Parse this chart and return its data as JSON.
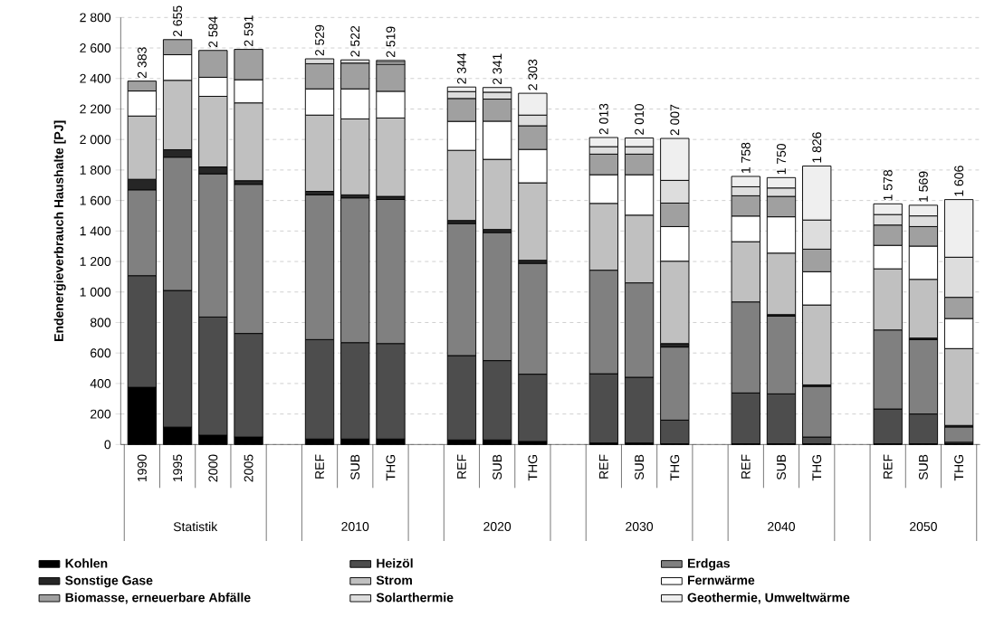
{
  "chart_data": {
    "type": "bar",
    "stacked": true,
    "ylabel": "Endenergieverbrauch Haushalte [PJ]",
    "categories": [
      "1990",
      "1995",
      "2000",
      "2005",
      null,
      "REF",
      "SUB",
      "THG",
      null,
      "REF",
      "SUB",
      "THG",
      null,
      "REF",
      "SUB",
      "THG",
      null,
      "REF",
      "SUB",
      "THG",
      null,
      "REF",
      "SUB",
      "THG"
    ],
    "series": [
      {
        "name": "Kohlen",
        "color": "#000000",
        "values": [
          375,
          114,
          61,
          49,
          null,
          36,
          36,
          36,
          null,
          30,
          30,
          20,
          null,
          10,
          10,
          5,
          null,
          5,
          5,
          5,
          null,
          5,
          5,
          5
        ]
      },
      {
        "name": "Heizöl",
        "color": "#4d4d4d",
        "values": [
          732,
          896,
          775,
          679,
          null,
          652,
          632,
          626,
          null,
          553,
          520,
          441,
          null,
          454,
          431,
          155,
          null,
          333,
          327,
          44,
          null,
          228,
          195,
          10
        ]
      },
      {
        "name": "Erdgas",
        "color": "#808080",
        "values": [
          563,
          874,
          939,
          978,
          null,
          949,
          949,
          945,
          null,
          866,
          840,
          727,
          null,
          679,
          619,
          479,
          null,
          597,
          510,
          332,
          null,
          518,
          488,
          100
        ]
      },
      {
        "name": "Sonstige Gase",
        "color": "#262626",
        "values": [
          69,
          49,
          45,
          24,
          null,
          23,
          20,
          20,
          null,
          20,
          20,
          20,
          null,
          null,
          null,
          23,
          null,
          null,
          10,
          10,
          null,
          null,
          10,
          10
        ]
      },
      {
        "name": "Strom",
        "color": "#c0c0c0",
        "values": [
          415,
          455,
          463,
          510,
          null,
          500,
          498,
          514,
          null,
          460,
          460,
          508,
          null,
          438,
          444,
          540,
          null,
          395,
          403,
          524,
          null,
          401,
          385,
          504
        ]
      },
      {
        "name": "Fernwärme",
        "color": "#ffffff",
        "values": [
          164,
          168,
          125,
          152,
          null,
          172,
          197,
          175,
          null,
          190,
          250,
          219,
          null,
          188,
          265,
          227,
          null,
          168,
          238,
          218,
          null,
          154,
          218,
          197
        ]
      },
      {
        "name": "Biomasse, erneuerbare Abfälle",
        "color": "#a0a0a0",
        "values": [
          65,
          99,
          176,
          199,
          null,
          165,
          169,
          178,
          null,
          150,
          145,
          155,
          null,
          135,
          135,
          154,
          null,
          133,
          134,
          148,
          null,
          133,
          128,
          139
        ]
      },
      {
        "name": "Solarthermie",
        "color": "#dddddd",
        "values": [
          null,
          null,
          null,
          null,
          null,
          32,
          21,
          15,
          null,
          45,
          45,
          70,
          null,
          49,
          49,
          149,
          null,
          59,
          55,
          191,
          null,
          69,
          70,
          263
        ]
      },
      {
        "name": "Geothermie, Umweltwärme",
        "color": "#efefef",
        "values": [
          null,
          null,
          null,
          null,
          null,
          null,
          null,
          10,
          null,
          30,
          31,
          143,
          null,
          60,
          57,
          275,
          null,
          68,
          68,
          354,
          null,
          70,
          70,
          378
        ]
      }
    ],
    "totals": [
      "2 383",
      "2 655",
      "2 584",
      "2 591",
      null,
      "2 529",
      "2 522",
      "2 519",
      null,
      "2 344",
      "2 341",
      "2 303",
      null,
      "2 013",
      "2 010",
      "2 007",
      null,
      "1 758",
      "1 750",
      "1 826",
      null,
      "1 578",
      "1 569",
      "1 606"
    ],
    "annotations": [
      "Statistik",
      "2010",
      "2020",
      "2030",
      "2040",
      "2050"
    ],
    "ylim": [
      0,
      2800
    ],
    "yticks": [
      {
        "value": 0,
        "label": "0"
      },
      {
        "value": 200,
        "label": "200"
      },
      {
        "value": 400,
        "label": "400"
      },
      {
        "value": 600,
        "label": "600"
      },
      {
        "value": 800,
        "label": "800"
      },
      {
        "value": 1000,
        "label": "1 000"
      },
      {
        "value": 1200,
        "label": "1 200"
      },
      {
        "value": 1400,
        "label": "1 400"
      },
      {
        "value": 1600,
        "label": "1 600"
      },
      {
        "value": 1800,
        "label": "1 800"
      },
      {
        "value": 2000,
        "label": "2 000"
      },
      {
        "value": 2200,
        "label": "2 200"
      },
      {
        "value": 2400,
        "label": "2 400"
      },
      {
        "value": 2600,
        "label": "2 600"
      },
      {
        "value": 2800,
        "label": "2 800"
      }
    ],
    "grid": "y",
    "legend": "bottom"
  }
}
